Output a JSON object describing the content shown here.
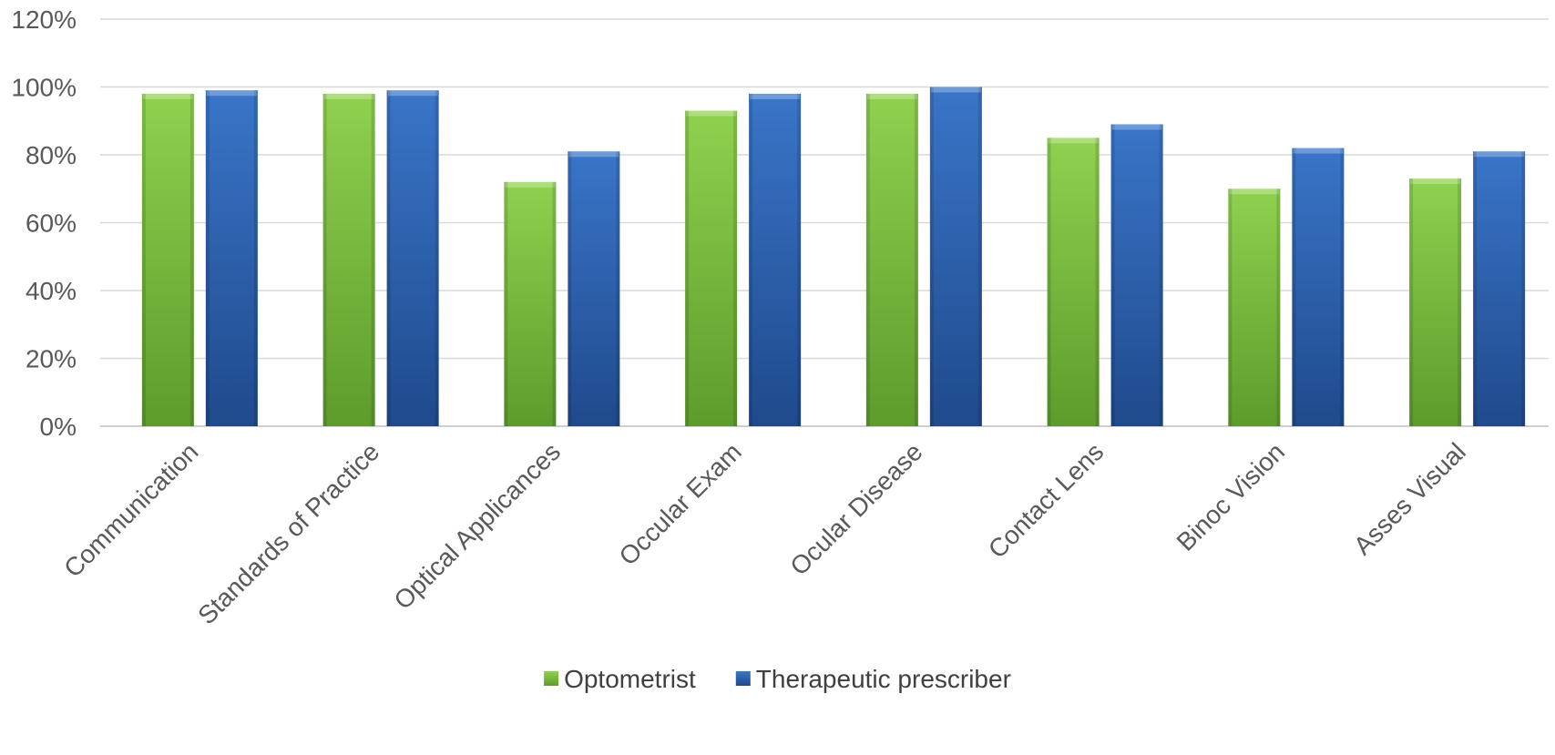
{
  "chart_data": {
    "type": "bar",
    "title": "",
    "xlabel": "",
    "ylabel": "",
    "categories": [
      "Communication",
      "Standards of Practice",
      "Optical Applicances",
      "Occular Exam",
      "Ocular Disease",
      "Contact Lens",
      "Binoc Vision",
      "Asses Visual"
    ],
    "series": [
      {
        "name": "Optometrist",
        "color": "#7ec63f",
        "values": [
          0.98,
          0.98,
          0.72,
          0.93,
          0.98,
          0.85,
          0.7,
          0.73
        ]
      },
      {
        "name": "Therapeutic prescriber",
        "color": "#2e64b4",
        "values": [
          0.99,
          0.99,
          0.81,
          0.98,
          1.0,
          0.89,
          0.82,
          0.81
        ]
      }
    ],
    "ylim": [
      0,
      1.2
    ],
    "yticks": [
      "0%",
      "20%",
      "40%",
      "60%",
      "80%",
      "100%",
      "120%"
    ],
    "grid": true,
    "legend_position": "bottom"
  }
}
